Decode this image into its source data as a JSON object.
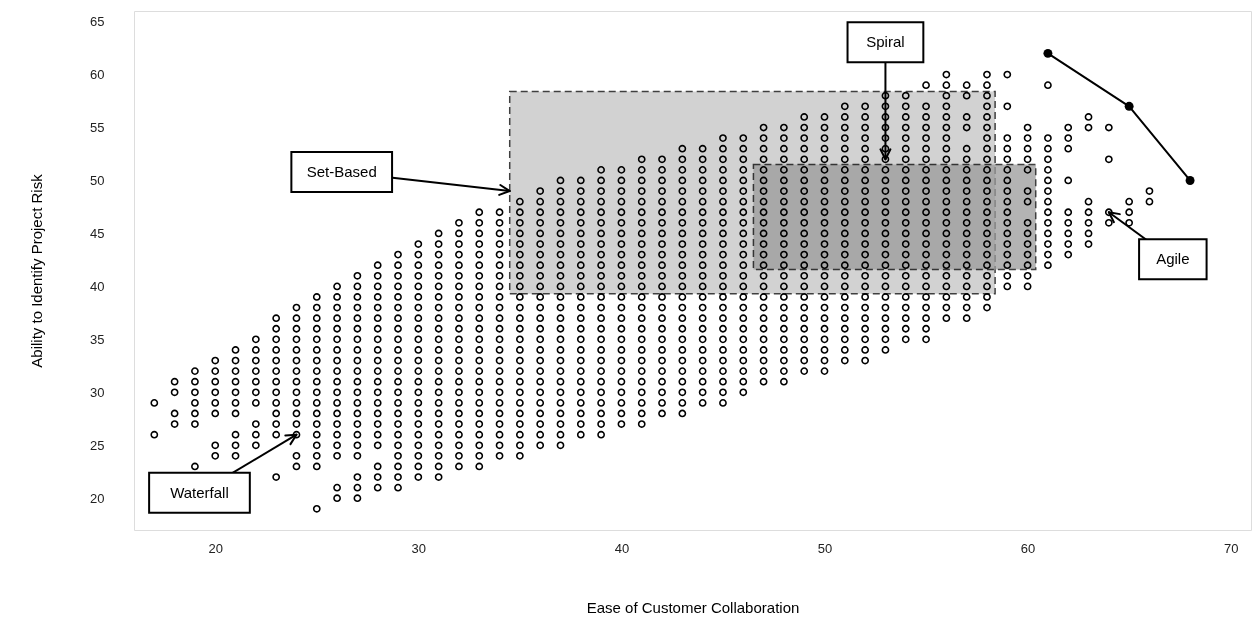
{
  "chart_data": {
    "type": "scatter",
    "xlabel": "Ease of Customer Collaboration",
    "ylabel": "Ability to Identify Project Risk",
    "xlim": [
      16,
      71
    ],
    "ylim": [
      17,
      66
    ],
    "xticks": [
      20,
      30,
      40,
      50,
      60,
      70
    ],
    "yticks": [
      20,
      25,
      30,
      35,
      40,
      45,
      50,
      55,
      60,
      65
    ],
    "grid": false,
    "marker": "circle",
    "annotations": [
      {
        "text": "Set-Based",
        "x": 34.5,
        "y": 49
      },
      {
        "text": "Spiral",
        "x": 53,
        "y": 52
      },
      {
        "text": "Waterfall",
        "x": 24,
        "y": 26
      },
      {
        "text": "Agile",
        "x": 64,
        "y": 47
      }
    ],
    "series": [
      {
        "type": "area",
        "color": "#c4c4c4",
        "line_style": "dashed",
        "x": [
          34.5,
          58.4
        ],
        "values": [
          null,
          null
        ],
        "lower": [
          39.3,
          39.3
        ],
        "upper": [
          58.4,
          58.4
        ]
      },
      {
        "type": "area",
        "color": "#9a9a9a",
        "line_style": "dashed",
        "x": [
          46.5,
          60.4
        ],
        "values": [
          null,
          null
        ],
        "lower": [
          41.6,
          41.6
        ],
        "upper": [
          51.5,
          51.5
        ]
      },
      {
        "color": "#000000",
        "x": [
          17,
          17
        ],
        "values": [
          29,
          26
        ]
      },
      {
        "color": "#000000",
        "x": [
          18,
          18,
          18,
          18
        ],
        "values": [
          31,
          30,
          28,
          27
        ]
      },
      {
        "color": "#000000",
        "x": [
          19,
          19,
          19,
          19,
          19,
          19,
          19
        ],
        "values": [
          32,
          31,
          30,
          29,
          28,
          27,
          23
        ]
      },
      {
        "color": "#000000",
        "x": [
          20,
          20,
          20,
          20,
          20,
          20,
          20,
          20
        ],
        "values": [
          33,
          32,
          31,
          30,
          29,
          28,
          25,
          24
        ]
      },
      {
        "color": "#000000",
        "x": [
          21,
          21,
          21,
          21,
          21,
          21,
          21,
          21,
          21,
          21
        ],
        "values": [
          34,
          33,
          32,
          31,
          30,
          29,
          28,
          26,
          25,
          24
        ]
      },
      {
        "color": "#000000",
        "x": [
          22,
          22,
          22,
          22,
          22,
          22,
          22,
          22,
          22,
          22
        ],
        "values": [
          35,
          34,
          33,
          32,
          31,
          30,
          29,
          27,
          26,
          25
        ]
      },
      {
        "color": "#000000",
        "x": [
          23,
          23,
          23,
          23,
          23,
          23,
          23,
          23,
          23,
          23,
          23,
          23,
          23
        ],
        "values": [
          37,
          36,
          35,
          34,
          33,
          32,
          31,
          30,
          29,
          28,
          27,
          26,
          22
        ]
      },
      {
        "color": "#000000",
        "x": [
          24,
          24,
          24,
          24,
          24,
          24,
          24,
          24,
          24,
          24,
          24,
          24,
          24,
          24,
          24
        ],
        "values": [
          38,
          37,
          36,
          35,
          34,
          33,
          32,
          31,
          30,
          29,
          28,
          27,
          26,
          24,
          23
        ]
      },
      {
        "color": "#000000",
        "x": [
          25,
          25,
          25,
          25,
          25,
          25,
          25,
          25,
          25,
          25,
          25,
          25,
          25,
          25,
          25,
          25,
          25,
          25
        ],
        "values": [
          39,
          38,
          37,
          36,
          35,
          34,
          33,
          32,
          31,
          30,
          29,
          28,
          27,
          26,
          25,
          24,
          23,
          19
        ]
      },
      {
        "color": "#000000",
        "x": [
          26,
          26,
          26,
          26,
          26,
          26,
          26,
          26,
          26,
          26,
          26,
          26,
          26,
          26,
          26,
          26,
          26,
          26,
          26
        ],
        "values": [
          40,
          39,
          38,
          37,
          36,
          35,
          34,
          33,
          32,
          31,
          30,
          29,
          28,
          27,
          26,
          25,
          24,
          21,
          20
        ]
      },
      {
        "color": "#000000",
        "x": [
          27,
          27,
          27,
          27,
          27,
          27,
          27,
          27,
          27,
          27,
          27,
          27,
          27,
          27,
          27,
          27,
          27,
          27,
          27,
          27,
          27
        ],
        "values": [
          41,
          40,
          39,
          38,
          37,
          36,
          35,
          34,
          33,
          32,
          31,
          30,
          29,
          28,
          27,
          26,
          25,
          24,
          22,
          21,
          20
        ]
      },
      {
        "color": "#000000",
        "x": [
          28,
          28,
          28,
          28,
          28,
          28,
          28,
          28,
          28,
          28,
          28,
          28,
          28,
          28,
          28,
          28,
          28,
          28,
          28,
          28,
          28
        ],
        "values": [
          42,
          41,
          40,
          39,
          38,
          37,
          36,
          35,
          34,
          33,
          32,
          31,
          30,
          29,
          28,
          27,
          26,
          25,
          23,
          22,
          21
        ]
      },
      {
        "color": "#000000",
        "x": [
          29,
          29,
          29,
          29,
          29,
          29,
          29,
          29,
          29,
          29,
          29,
          29,
          29,
          29,
          29,
          29,
          29,
          29,
          29,
          29,
          29,
          29,
          29
        ],
        "values": [
          43,
          42,
          41,
          40,
          39,
          38,
          37,
          36,
          35,
          34,
          33,
          32,
          31,
          30,
          29,
          28,
          27,
          26,
          25,
          24,
          23,
          22,
          21
        ]
      },
      {
        "color": "#000000",
        "x": [
          30,
          30,
          30,
          30,
          30,
          30,
          30,
          30,
          30,
          30,
          30,
          30,
          30,
          30,
          30,
          30,
          30,
          30,
          30,
          30,
          30,
          30,
          30
        ],
        "values": [
          44,
          43,
          42,
          41,
          40,
          39,
          38,
          37,
          36,
          35,
          34,
          33,
          32,
          31,
          30,
          29,
          28,
          27,
          26,
          25,
          24,
          23,
          22
        ]
      },
      {
        "color": "#000000",
        "x": [
          31,
          31,
          31,
          31,
          31,
          31,
          31,
          31,
          31,
          31,
          31,
          31,
          31,
          31,
          31,
          31,
          31,
          31,
          31,
          31,
          31,
          31,
          31,
          31
        ],
        "values": [
          45,
          44,
          43,
          42,
          41,
          40,
          39,
          38,
          37,
          36,
          35,
          34,
          33,
          32,
          31,
          30,
          29,
          28,
          27,
          26,
          25,
          24,
          23,
          22
        ]
      },
      {
        "color": "#000000",
        "x": [
          32,
          32,
          32,
          32,
          32,
          32,
          32,
          32,
          32,
          32,
          32,
          32,
          32,
          32,
          32,
          32,
          32,
          32,
          32,
          32,
          32,
          32,
          32,
          32
        ],
        "values": [
          46,
          45,
          44,
          43,
          42,
          41,
          40,
          39,
          38,
          37,
          36,
          35,
          34,
          33,
          32,
          31,
          30,
          29,
          28,
          27,
          26,
          25,
          24,
          23
        ]
      },
      {
        "color": "#000000",
        "x": [
          33,
          33,
          33,
          33,
          33,
          33,
          33,
          33,
          33,
          33,
          33,
          33,
          33,
          33,
          33,
          33,
          33,
          33,
          33,
          33,
          33,
          33,
          33,
          33,
          33
        ],
        "values": [
          47,
          46,
          45,
          44,
          43,
          42,
          41,
          40,
          39,
          38,
          37,
          36,
          35,
          34,
          33,
          32,
          31,
          30,
          29,
          28,
          27,
          26,
          25,
          24,
          23
        ]
      },
      {
        "color": "#000000",
        "x": [
          34,
          34,
          34,
          34,
          34,
          34,
          34,
          34,
          34,
          34,
          34,
          34,
          34,
          34,
          34,
          34,
          34,
          34,
          34,
          34,
          34,
          34,
          34,
          34
        ],
        "values": [
          47,
          46,
          45,
          44,
          43,
          42,
          41,
          40,
          39,
          38,
          37,
          36,
          35,
          34,
          33,
          32,
          31,
          30,
          29,
          28,
          27,
          26,
          25,
          24
        ]
      },
      {
        "color": "#000000",
        "x": [
          35,
          35,
          35,
          35,
          35,
          35,
          35,
          35,
          35,
          35,
          35,
          35,
          35,
          35,
          35,
          35,
          35,
          35,
          35,
          35,
          35,
          35,
          35,
          35,
          35
        ],
        "values": [
          48,
          47,
          46,
          45,
          44,
          43,
          42,
          41,
          40,
          39,
          38,
          37,
          36,
          35,
          34,
          33,
          32,
          31,
          30,
          29,
          28,
          27,
          26,
          25,
          24
        ]
      },
      {
        "color": "#000000",
        "x": [
          36,
          36,
          36,
          36,
          36,
          36,
          36,
          36,
          36,
          36,
          36,
          36,
          36,
          36,
          36,
          36,
          36,
          36,
          36,
          36,
          36,
          36,
          36,
          36,
          36
        ],
        "values": [
          49,
          48,
          47,
          46,
          45,
          44,
          43,
          42,
          41,
          40,
          39,
          38,
          37,
          36,
          35,
          34,
          33,
          32,
          31,
          30,
          29,
          28,
          27,
          26,
          25
        ]
      },
      {
        "color": "#000000",
        "x": [
          37,
          37,
          37,
          37,
          37,
          37,
          37,
          37,
          37,
          37,
          37,
          37,
          37,
          37,
          37,
          37,
          37,
          37,
          37,
          37,
          37,
          37,
          37,
          37,
          37,
          37
        ],
        "values": [
          50,
          49,
          48,
          47,
          46,
          45,
          44,
          43,
          42,
          41,
          40,
          39,
          38,
          37,
          36,
          35,
          34,
          33,
          32,
          31,
          30,
          29,
          28,
          27,
          26,
          25
        ]
      },
      {
        "color": "#000000",
        "x": [
          38,
          38,
          38,
          38,
          38,
          38,
          38,
          38,
          38,
          38,
          38,
          38,
          38,
          38,
          38,
          38,
          38,
          38,
          38,
          38,
          38,
          38,
          38,
          38,
          38
        ],
        "values": [
          50,
          49,
          48,
          47,
          46,
          45,
          44,
          43,
          42,
          41,
          40,
          39,
          38,
          37,
          36,
          35,
          34,
          33,
          32,
          31,
          30,
          29,
          28,
          27,
          26
        ]
      },
      {
        "color": "#000000",
        "x": [
          39,
          39,
          39,
          39,
          39,
          39,
          39,
          39,
          39,
          39,
          39,
          39,
          39,
          39,
          39,
          39,
          39,
          39,
          39,
          39,
          39,
          39,
          39,
          39,
          39,
          39
        ],
        "values": [
          51,
          50,
          49,
          48,
          47,
          46,
          45,
          44,
          43,
          42,
          41,
          40,
          39,
          38,
          37,
          36,
          35,
          34,
          33,
          32,
          31,
          30,
          29,
          28,
          27,
          26
        ]
      },
      {
        "color": "#000000",
        "x": [
          40,
          40,
          40,
          40,
          40,
          40,
          40,
          40,
          40,
          40,
          40,
          40,
          40,
          40,
          40,
          40,
          40,
          40,
          40,
          40,
          40,
          40,
          40,
          40,
          40
        ],
        "values": [
          51,
          50,
          49,
          48,
          47,
          46,
          45,
          44,
          43,
          42,
          41,
          40,
          39,
          38,
          37,
          36,
          35,
          34,
          33,
          32,
          31,
          30,
          29,
          28,
          27
        ]
      },
      {
        "color": "#000000",
        "x": [
          41,
          41,
          41,
          41,
          41,
          41,
          41,
          41,
          41,
          41,
          41,
          41,
          41,
          41,
          41,
          41,
          41,
          41,
          41,
          41,
          41,
          41,
          41,
          41,
          41,
          41
        ],
        "values": [
          52,
          51,
          50,
          49,
          48,
          47,
          46,
          45,
          44,
          43,
          42,
          41,
          40,
          39,
          38,
          37,
          36,
          35,
          34,
          33,
          32,
          31,
          30,
          29,
          28,
          27
        ]
      },
      {
        "color": "#000000",
        "x": [
          42,
          42,
          42,
          42,
          42,
          42,
          42,
          42,
          42,
          42,
          42,
          42,
          42,
          42,
          42,
          42,
          42,
          42,
          42,
          42,
          42,
          42,
          42,
          42,
          42
        ],
        "values": [
          52,
          51,
          50,
          49,
          48,
          47,
          46,
          45,
          44,
          43,
          42,
          41,
          40,
          39,
          38,
          37,
          36,
          35,
          34,
          33,
          32,
          31,
          30,
          29,
          28
        ]
      },
      {
        "color": "#000000",
        "x": [
          43,
          43,
          43,
          43,
          43,
          43,
          43,
          43,
          43,
          43,
          43,
          43,
          43,
          43,
          43,
          43,
          43,
          43,
          43,
          43,
          43,
          43,
          43,
          43,
          43,
          43
        ],
        "values": [
          53,
          52,
          51,
          50,
          49,
          48,
          47,
          46,
          45,
          44,
          43,
          42,
          41,
          40,
          39,
          38,
          37,
          36,
          35,
          34,
          33,
          32,
          31,
          30,
          29,
          28
        ]
      },
      {
        "color": "#000000",
        "x": [
          44,
          44,
          44,
          44,
          44,
          44,
          44,
          44,
          44,
          44,
          44,
          44,
          44,
          44,
          44,
          44,
          44,
          44,
          44,
          44,
          44,
          44,
          44,
          44,
          44
        ],
        "values": [
          53,
          52,
          51,
          50,
          49,
          48,
          47,
          46,
          45,
          44,
          43,
          42,
          41,
          40,
          39,
          38,
          37,
          36,
          35,
          34,
          33,
          32,
          31,
          30,
          29
        ]
      },
      {
        "color": "#000000",
        "x": [
          45,
          45,
          45,
          45,
          45,
          45,
          45,
          45,
          45,
          45,
          45,
          45,
          45,
          45,
          45,
          45,
          45,
          45,
          45,
          45,
          45,
          45,
          45,
          45,
          45,
          45
        ],
        "values": [
          54,
          53,
          52,
          51,
          50,
          49,
          48,
          47,
          46,
          45,
          44,
          43,
          42,
          41,
          40,
          39,
          38,
          37,
          36,
          35,
          34,
          33,
          32,
          31,
          30,
          29
        ]
      },
      {
        "color": "#000000",
        "x": [
          46,
          46,
          46,
          46,
          46,
          46,
          46,
          46,
          46,
          46,
          46,
          46,
          46,
          46,
          46,
          46,
          46,
          46,
          46,
          46,
          46,
          46,
          46,
          46,
          46
        ],
        "values": [
          54,
          53,
          52,
          51,
          50,
          49,
          48,
          47,
          46,
          45,
          44,
          43,
          42,
          41,
          40,
          39,
          38,
          37,
          36,
          35,
          34,
          33,
          32,
          31,
          30
        ]
      },
      {
        "color": "#000000",
        "x": [
          47,
          47,
          47,
          47,
          47,
          47,
          47,
          47,
          47,
          47,
          47,
          47,
          47,
          47,
          47,
          47,
          47,
          47,
          47,
          47,
          47,
          47,
          47,
          47,
          47
        ],
        "values": [
          55,
          54,
          53,
          52,
          51,
          50,
          49,
          48,
          47,
          46,
          45,
          44,
          43,
          42,
          41,
          40,
          39,
          38,
          37,
          36,
          35,
          34,
          33,
          32,
          31
        ]
      },
      {
        "color": "#000000",
        "x": [
          48,
          48,
          48,
          48,
          48,
          48,
          48,
          48,
          48,
          48,
          48,
          48,
          48,
          48,
          48,
          48,
          48,
          48,
          48,
          48,
          48,
          48,
          48,
          48,
          48
        ],
        "values": [
          55,
          54,
          53,
          52,
          51,
          50,
          49,
          48,
          47,
          46,
          45,
          44,
          43,
          42,
          41,
          40,
          39,
          38,
          37,
          36,
          35,
          34,
          33,
          32,
          31
        ]
      },
      {
        "color": "#000000",
        "x": [
          49,
          49,
          49,
          49,
          49,
          49,
          49,
          49,
          49,
          49,
          49,
          49,
          49,
          49,
          49,
          49,
          49,
          49,
          49,
          49,
          49,
          49,
          49,
          49,
          49
        ],
        "values": [
          56,
          55,
          54,
          53,
          52,
          51,
          50,
          49,
          48,
          47,
          46,
          45,
          44,
          43,
          42,
          41,
          40,
          39,
          38,
          37,
          36,
          35,
          34,
          33,
          32
        ]
      },
      {
        "color": "#000000",
        "x": [
          50,
          50,
          50,
          50,
          50,
          50,
          50,
          50,
          50,
          50,
          50,
          50,
          50,
          50,
          50,
          50,
          50,
          50,
          50,
          50,
          50,
          50,
          50,
          50,
          50
        ],
        "values": [
          56,
          55,
          54,
          53,
          52,
          51,
          50,
          49,
          48,
          47,
          46,
          45,
          44,
          43,
          42,
          41,
          40,
          39,
          38,
          37,
          36,
          35,
          34,
          33,
          32
        ]
      },
      {
        "color": "#000000",
        "x": [
          51,
          51,
          51,
          51,
          51,
          51,
          51,
          51,
          51,
          51,
          51,
          51,
          51,
          51,
          51,
          51,
          51,
          51,
          51,
          51,
          51,
          51,
          51,
          51,
          51
        ],
        "values": [
          57,
          56,
          55,
          54,
          53,
          52,
          51,
          50,
          49,
          48,
          47,
          46,
          45,
          44,
          43,
          42,
          41,
          40,
          39,
          38,
          37,
          36,
          35,
          34,
          33
        ]
      },
      {
        "color": "#000000",
        "x": [
          52,
          52,
          52,
          52,
          52,
          52,
          52,
          52,
          52,
          52,
          52,
          52,
          52,
          52,
          52,
          52,
          52,
          52,
          52,
          52,
          52,
          52,
          52,
          52,
          52
        ],
        "values": [
          57,
          56,
          55,
          54,
          53,
          52,
          51,
          50,
          49,
          48,
          47,
          46,
          45,
          44,
          43,
          42,
          41,
          40,
          39,
          38,
          37,
          36,
          35,
          34,
          33
        ]
      },
      {
        "color": "#000000",
        "x": [
          53,
          53,
          53,
          53,
          53,
          53,
          53,
          53,
          53,
          53,
          53,
          53,
          53,
          53,
          53,
          53,
          53,
          53,
          53,
          53,
          53,
          53,
          53,
          53,
          53
        ],
        "values": [
          58,
          57,
          56,
          55,
          54,
          53,
          52,
          51,
          50,
          49,
          48,
          47,
          46,
          45,
          44,
          43,
          42,
          41,
          40,
          39,
          38,
          37,
          36,
          35,
          34
        ]
      },
      {
        "color": "#000000",
        "x": [
          54,
          54,
          54,
          54,
          54,
          54,
          54,
          54,
          54,
          54,
          54,
          54,
          54,
          54,
          54,
          54,
          54,
          54,
          54,
          54,
          54,
          54,
          54,
          54
        ],
        "values": [
          58,
          57,
          56,
          55,
          54,
          53,
          52,
          51,
          50,
          49,
          48,
          47,
          46,
          45,
          44,
          43,
          42,
          41,
          40,
          39,
          38,
          37,
          36,
          35
        ]
      },
      {
        "color": "#000000",
        "x": [
          55,
          55,
          55,
          55,
          55,
          55,
          55,
          55,
          55,
          55,
          55,
          55,
          55,
          55,
          55,
          55,
          55,
          55,
          55,
          55,
          55,
          55,
          55,
          55
        ],
        "values": [
          59,
          57,
          56,
          55,
          54,
          53,
          52,
          51,
          50,
          49,
          48,
          47,
          46,
          45,
          44,
          43,
          42,
          41,
          40,
          39,
          38,
          37,
          36,
          35
        ]
      },
      {
        "color": "#000000",
        "x": [
          56,
          56,
          56,
          56,
          56,
          56,
          56,
          56,
          56,
          56,
          56,
          56,
          56,
          56,
          56,
          56,
          56,
          56,
          56,
          56,
          56,
          56,
          56,
          56
        ],
        "values": [
          60,
          59,
          58,
          57,
          56,
          55,
          54,
          53,
          52,
          51,
          50,
          49,
          48,
          47,
          46,
          45,
          44,
          43,
          42,
          41,
          40,
          39,
          38,
          37
        ]
      },
      {
        "color": "#000000",
        "x": [
          57,
          57,
          57,
          57,
          57,
          57,
          57,
          57,
          57,
          57,
          57,
          57,
          57,
          57,
          57,
          57,
          57,
          57,
          57,
          57,
          57
        ],
        "values": [
          59,
          58,
          56,
          55,
          53,
          52,
          51,
          50,
          49,
          48,
          47,
          46,
          45,
          44,
          43,
          42,
          41,
          40,
          39,
          38,
          37
        ]
      },
      {
        "color": "#000000",
        "x": [
          58,
          58,
          58,
          58,
          58,
          58,
          58,
          58,
          58,
          58,
          58,
          58,
          58,
          58,
          58,
          58,
          58,
          58,
          58,
          58,
          58,
          58,
          58
        ],
        "values": [
          60,
          59,
          58,
          57,
          56,
          55,
          54,
          53,
          52,
          51,
          50,
          49,
          48,
          47,
          46,
          45,
          44,
          43,
          42,
          41,
          40,
          39,
          38
        ]
      },
      {
        "color": "#000000",
        "x": [
          59,
          59,
          59,
          59,
          59,
          59,
          59,
          59,
          59,
          59,
          59,
          59,
          59,
          59,
          59,
          59,
          59
        ],
        "values": [
          60,
          57,
          54,
          53,
          52,
          51,
          50,
          49,
          48,
          47,
          46,
          45,
          44,
          43,
          42,
          41,
          40
        ]
      },
      {
        "color": "#000000",
        "x": [
          60,
          60,
          60,
          60,
          60,
          60,
          60,
          60,
          60,
          60,
          60,
          60,
          60,
          60
        ],
        "values": [
          55,
          54,
          53,
          52,
          51,
          49,
          48,
          46,
          45,
          44,
          43,
          42,
          41,
          40
        ]
      },
      {
        "color": "#000000",
        "x": [
          61,
          61,
          61,
          61,
          61,
          61,
          61,
          61,
          61,
          61,
          61,
          61,
          61,
          61
        ],
        "values": [
          59,
          54,
          53,
          52,
          51,
          50,
          49,
          48,
          47,
          46,
          45,
          44,
          43,
          42
        ]
      },
      {
        "color": "#000000",
        "x": [
          62,
          62,
          62,
          62,
          62,
          62,
          62,
          62,
          62
        ],
        "values": [
          55,
          54,
          53,
          50,
          47,
          46,
          45,
          44,
          43
        ]
      },
      {
        "color": "#000000",
        "x": [
          63,
          63,
          63,
          63,
          63,
          63,
          63
        ],
        "values": [
          56,
          55,
          48,
          47,
          46,
          45,
          44
        ]
      },
      {
        "color": "#000000",
        "x": [
          64,
          64,
          64,
          64
        ],
        "values": [
          55,
          52,
          47,
          46
        ]
      },
      {
        "color": "#000000",
        "x": [
          65,
          65,
          65
        ],
        "values": [
          48,
          47,
          46
        ]
      },
      {
        "color": "#000000",
        "x": [
          66,
          66
        ],
        "values": [
          49,
          48
        ]
      },
      {
        "type": "line",
        "color": "#000000",
        "line_style": "solid",
        "x": [
          61,
          65,
          68
        ],
        "values": [
          62,
          57,
          50
        ]
      }
    ]
  }
}
